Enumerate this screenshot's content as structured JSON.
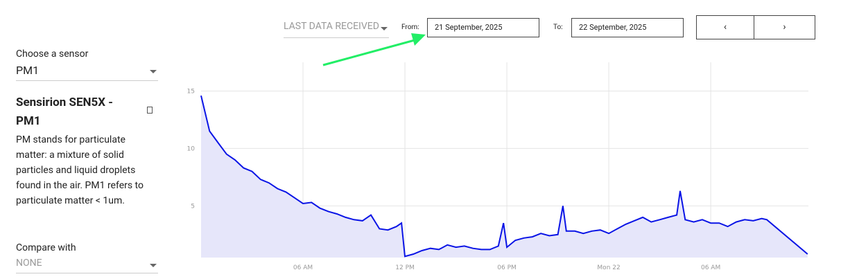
{
  "controls": {
    "range_select": "LAST DATA RECEIVED",
    "from_label": "From:",
    "from_value": "21 September, 2025",
    "to_label": "To:",
    "to_value": "22 September, 2025"
  },
  "sidebar": {
    "choose_label": "Choose a sensor",
    "sensor": "PM1",
    "sensor_title": "Sensirion SEN5X - PM1",
    "description": "PM stands for particulate matter: a mixture of solid particles and liquid droplets found in the air. PM1 refers to particulate matter < 1um.",
    "compare_label": "Compare with",
    "compare_value": "NONE"
  },
  "chart_data": {
    "type": "line",
    "x": [
      0,
      0.5,
      1,
      1.5,
      2,
      2.5,
      3,
      3.5,
      4,
      4.5,
      5,
      5.5,
      6,
      6.5,
      7,
      7.5,
      8,
      8.5,
      9,
      9.5,
      10,
      10.5,
      11,
      11.5,
      11.8,
      12,
      12.5,
      13,
      13.5,
      14,
      14.5,
      15,
      15.5,
      16,
      16.5,
      17,
      17.5,
      17.8,
      18,
      18.5,
      19,
      19.5,
      20,
      20.5,
      21,
      21.3,
      21.5,
      22,
      22.5,
      23,
      23.5,
      24,
      24.5,
      25,
      25.5,
      26,
      26.5,
      27,
      27.5,
      28,
      28.2,
      28.5,
      29,
      29.5,
      30,
      30.5,
      31,
      31.5,
      32,
      32.5,
      33,
      33.3,
      35.7
    ],
    "series": [
      {
        "color": "#0a14e6",
        "fill": "#e6e6fa",
        "values": [
          14.6,
          11.5,
          10.5,
          9.5,
          9.0,
          8.3,
          8.0,
          7.3,
          7.0,
          6.5,
          6.2,
          5.7,
          5.2,
          5.3,
          4.8,
          4.5,
          4.3,
          4.0,
          3.8,
          3.7,
          4.2,
          3.0,
          2.9,
          3.2,
          3.5,
          0.6,
          0.8,
          1.1,
          1.3,
          1.2,
          1.6,
          1.4,
          1.5,
          1.3,
          1.2,
          1.2,
          1.5,
          3.5,
          1.4,
          2.0,
          2.2,
          2.3,
          2.6,
          2.4,
          2.5,
          5.0,
          2.8,
          2.8,
          2.6,
          2.8,
          2.9,
          2.6,
          3.0,
          3.4,
          3.7,
          4.0,
          3.6,
          3.8,
          4.0,
          4.2,
          6.3,
          3.8,
          3.6,
          3.8,
          3.5,
          3.5,
          3.2,
          3.6,
          3.8,
          3.7,
          3.9,
          3.8,
          0.8
        ]
      }
    ],
    "xlim": [
      0,
      35.75
    ],
    "xticks": [
      {
        "value": 6,
        "label": "06 AM"
      },
      {
        "value": 12,
        "label": "12 PM"
      },
      {
        "value": 18,
        "label": "06 PM"
      },
      {
        "value": 24,
        "label": "Mon 22"
      },
      {
        "value": 30,
        "label": "06 AM"
      }
    ],
    "ylim": [
      0.5,
      17.5
    ],
    "yticks": [
      5,
      10,
      15
    ],
    "grid": true
  }
}
